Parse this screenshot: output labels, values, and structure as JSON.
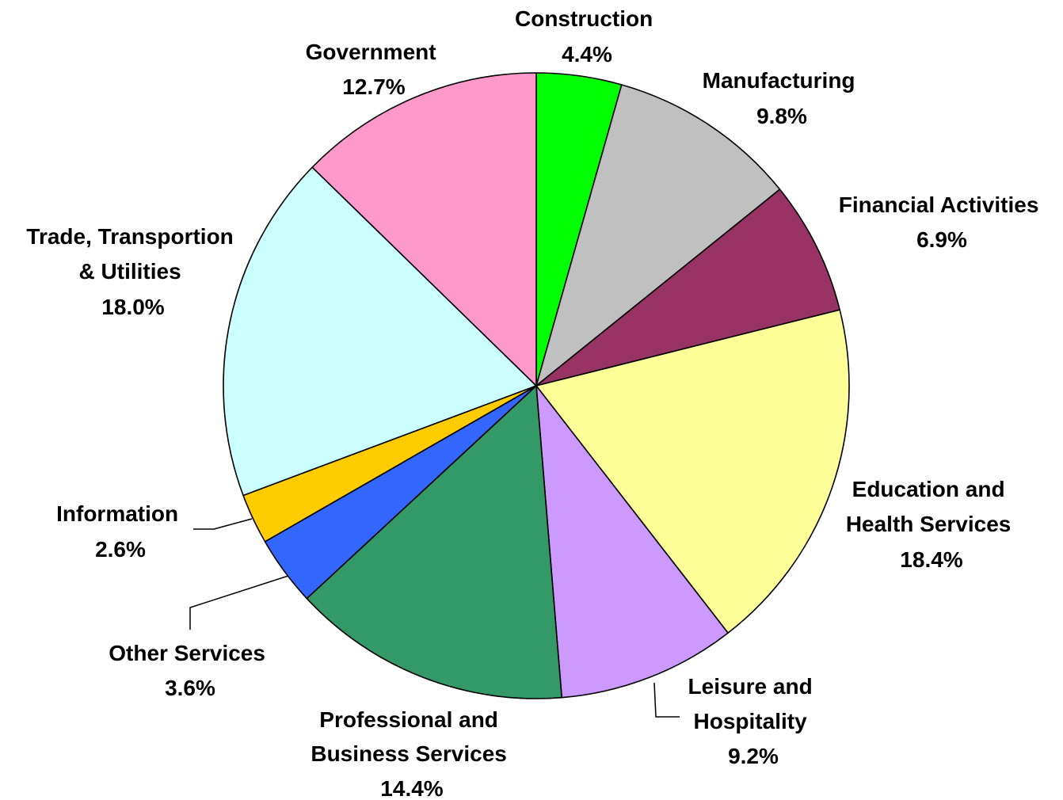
{
  "chart_data": {
    "type": "pie",
    "title": "",
    "value_format": "percent",
    "start_angle_deg": 0,
    "direction": "clockwise",
    "slices": [
      {
        "label": "Construction",
        "value": 4.4,
        "value_label": "4.4%",
        "color": "#00FF00"
      },
      {
        "label": "Manufacturing",
        "value": 9.8,
        "value_label": "9.8%",
        "color": "#C0C0C0"
      },
      {
        "label": "Financial Activities",
        "value": 6.9,
        "value_label": "6.9%",
        "color": "#993366"
      },
      {
        "label": "Education and Health Services",
        "value": 18.4,
        "value_label": "18.4%",
        "color": "#FFFF99"
      },
      {
        "label": "Leisure and Hospitality",
        "value": 9.2,
        "value_label": "9.2%",
        "color": "#CC99FF"
      },
      {
        "label": "Professional and Business Services",
        "value": 14.4,
        "value_label": "14.4%",
        "color": "#339966"
      },
      {
        "label": "Other Services",
        "value": 3.6,
        "value_label": "3.6%",
        "color": "#3366FF"
      },
      {
        "label": "Information",
        "value": 2.6,
        "value_label": "2.6%",
        "color": "#FFCC00"
      },
      {
        "label": "Trade, Transportion & Utilities",
        "value": 18.0,
        "value_label": "18.0%",
        "color": "#CCFFFF"
      },
      {
        "label": "Government",
        "value": 12.7,
        "value_label": "12.7%",
        "color": "#FF99CC"
      }
    ]
  }
}
